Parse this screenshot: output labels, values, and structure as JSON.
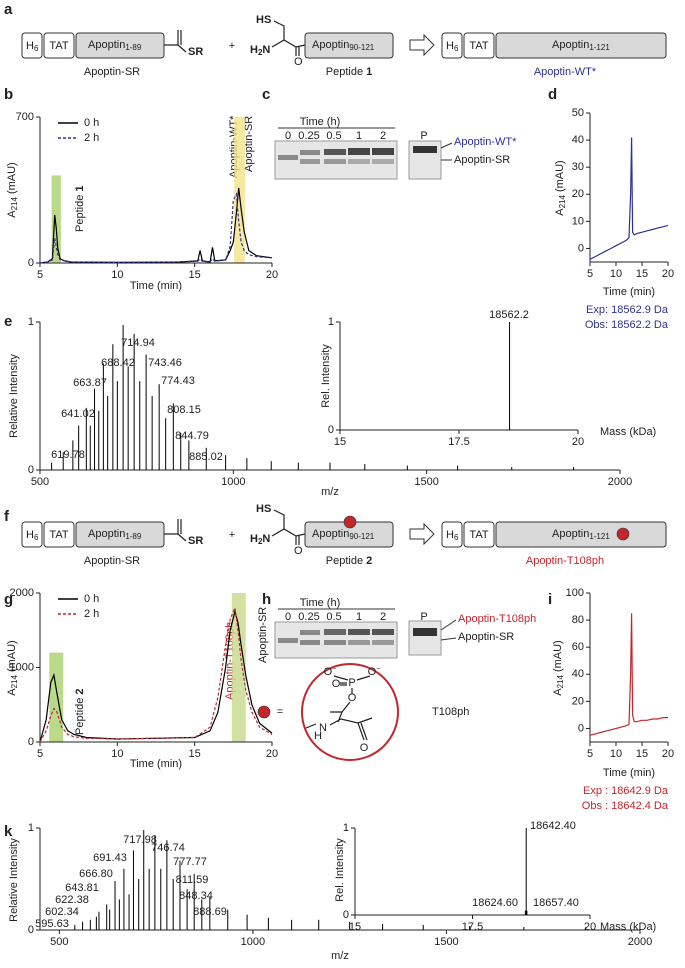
{
  "panel_labels": [
    "a",
    "b",
    "c",
    "d",
    "e",
    "f",
    "g",
    "h",
    "i",
    "k"
  ],
  "schemes": [
    {
      "h": "H",
      "h_sub": "6",
      "tat": "TAT",
      "frag1": "Apoptin",
      "frag1_sub": "1-89",
      "thioester": "SR",
      "plus": "+",
      "hs": "HS",
      "amine": "H",
      "amine_sub": "2",
      "amine_n": "N",
      "carbonyl": "O",
      "frag2": "Apoptin",
      "frag2_sub": "90-121",
      "product": "Apoptin",
      "product_sub": "1-121",
      "label1": "Apoptin-SR",
      "label2": "Peptide",
      "label2_num": "1",
      "label3": "Apoptin-WT*"
    },
    {
      "h": "H",
      "h_sub": "6",
      "tat": "TAT",
      "frag1": "Apoptin",
      "frag1_sub": "1-89",
      "thioester": "SR",
      "plus": "+",
      "hs": "HS",
      "amine": "H",
      "amine_sub": "2",
      "amine_n": "N",
      "carbonyl": "O",
      "frag2": "Apoptin",
      "frag2_sub": "90-121",
      "product": "Apoptin",
      "product_sub": "1-121",
      "label1": "Apoptin-SR",
      "label2": "Peptide",
      "label2_num": "2",
      "label3": "Apoptin-T108ph"
    }
  ],
  "gels": [
    {
      "time_label": "Time (h)",
      "lanes": [
        "0",
        "0.25",
        "0.5",
        "1",
        "2"
      ],
      "ref": "P",
      "bands": [
        "Apoptin-WT*",
        "Apoptin-SR"
      ]
    },
    {
      "time_label": "Time (h)",
      "lanes": [
        "0",
        "0.25",
        "0.5",
        "1",
        "2"
      ],
      "ref": "P",
      "bands": [
        "Apoptin-T108ph",
        "Apoptin-SR"
      ]
    }
  ],
  "structure": {
    "eq": "=",
    "name": "T108ph",
    "p": "P",
    "o": "O",
    "minus": "−",
    "n": "N",
    "h": "H"
  },
  "chart_data": [
    {
      "type": "line",
      "x_label": "Time (min)",
      "y_label": {
        "main": "A",
        "sub": "214",
        "unit": "(mAU)"
      },
      "xlim": [
        5,
        20
      ],
      "ylim": [
        0,
        700
      ],
      "xticks": [
        5,
        10,
        15,
        20
      ],
      "yticks": [
        0,
        700
      ],
      "legend": "upper left",
      "highlights": [
        {
          "x": [
            5.75,
            6.35
          ],
          "y": 420,
          "color": "#a9cf6b"
        },
        {
          "x": [
            17.55,
            18.25
          ],
          "y": 700,
          "color": "#f3e48a"
        }
      ],
      "annotations": [
        {
          "text": "Peptide",
          "num": "1"
        },
        "Apoptin-WT*",
        "Apoptin-SR"
      ],
      "series": [
        {
          "name": "0 h",
          "color": "#000000",
          "dash": false,
          "x": [
            5,
            5.5,
            5.8,
            5.95,
            6.05,
            6.15,
            6.3,
            6.6,
            7,
            10,
            14,
            15.2,
            15.35,
            15.5,
            16,
            16.15,
            16.3,
            17,
            17.3,
            17.5,
            17.7,
            17.85,
            18,
            18.2,
            18.5,
            19,
            20
          ],
          "values": [
            0,
            5,
            20,
            230,
            170,
            70,
            20,
            10,
            5,
            3,
            5,
            10,
            60,
            10,
            5,
            75,
            10,
            15,
            60,
            100,
            240,
            360,
            260,
            150,
            60,
            35,
            25
          ]
        },
        {
          "name": "2 h",
          "color": "#2e3192",
          "dash": true,
          "x": [
            5,
            5.5,
            5.8,
            5.95,
            6.05,
            6.15,
            6.3,
            6.6,
            7,
            10,
            14,
            15.2,
            15.35,
            15.5,
            16,
            16.15,
            16.3,
            17,
            17.3,
            17.5,
            17.7,
            17.85,
            18,
            18.2,
            18.5,
            19,
            20
          ],
          "values": [
            0,
            5,
            15,
            120,
            80,
            40,
            15,
            10,
            5,
            3,
            5,
            8,
            20,
            8,
            5,
            20,
            8,
            15,
            80,
            300,
            330,
            200,
            100,
            60,
            40,
            30,
            25
          ]
        }
      ]
    },
    {
      "type": "line",
      "x_label": "Time (min)",
      "y_label": {
        "main": "A",
        "sub": "214",
        "unit": "(mAU)"
      },
      "xlim": [
        5,
        20
      ],
      "ylim": [
        -5,
        50
      ],
      "xticks": [
        5,
        10,
        15,
        20
      ],
      "yticks": [
        0,
        10,
        20,
        30,
        40,
        50
      ],
      "annotations": [
        "Exp: 18562.9 Da",
        "Obs: 18562.2 Da"
      ],
      "series": [
        {
          "color": "#2e3192",
          "dash": false,
          "x": [
            5,
            6,
            7,
            8,
            9,
            10,
            11,
            12,
            12.5,
            12.8,
            13,
            13.2,
            13.5,
            14,
            15,
            16,
            17,
            18,
            19,
            20
          ],
          "values": [
            -4,
            -3,
            -2,
            -1,
            0,
            1,
            2,
            3,
            4,
            20,
            41,
            6,
            5,
            5.5,
            6,
            6.5,
            7,
            7.5,
            8,
            8.5
          ]
        }
      ]
    },
    {
      "type": "stem",
      "x_label": "m/z",
      "y_label": "Relative Intensity",
      "xlim": [
        500,
        2000
      ],
      "ylim": [
        0,
        1
      ],
      "xticks": [
        500,
        1000,
        1500,
        2000
      ],
      "yticks": [
        0,
        1
      ],
      "series": [
        {
          "color": "#000000",
          "x": [
            619.78,
            641.02,
            663.87,
            688.42,
            714.94,
            743.46,
            774.43,
            808.15,
            844.79,
            885.02
          ],
          "x_labels": [
            "619.78",
            "641.02",
            "663.87",
            "688.42",
            "714.94",
            "743.46",
            "774.43",
            "808.15",
            "844.79",
            "885.02"
          ],
          "values": [
            0.42,
            0.55,
            0.72,
            0.85,
            0.98,
            0.92,
            0.78,
            0.58,
            0.45,
            0.2
          ]
        },
        {
          "color": "#000000",
          "x": [
            530,
            560,
            585,
            600,
            630,
            652,
            675,
            700,
            728,
            758,
            790,
            825,
            864,
            930,
            980,
            1035,
            1098,
            1168,
            1250,
            1340,
            1450,
            1580,
            1720,
            1880
          ],
          "values": [
            0.05,
            0.12,
            0.2,
            0.3,
            0.3,
            0.4,
            0.5,
            0.6,
            0.7,
            0.6,
            0.5,
            0.35,
            0.25,
            0.15,
            0.1,
            0.08,
            0.06,
            0.05,
            0.05,
            0.04,
            0.03,
            0.03,
            0.02,
            0.02
          ]
        }
      ]
    },
    {
      "type": "stem",
      "x_label": "Mass (kDa)",
      "y_label": "Rel. Intensity",
      "xlim": [
        15,
        20
      ],
      "ylim": [
        0,
        1
      ],
      "xticks": [
        15,
        17.5,
        20
      ],
      "yticks": [
        0,
        1
      ],
      "series": [
        {
          "color": "#000000",
          "x": [
            18.5622
          ],
          "x_labels": [
            "18562.2"
          ],
          "values": [
            1
          ]
        }
      ]
    },
    {
      "type": "line",
      "x_label": "Time (min)",
      "y_label": {
        "main": "A",
        "sub": "214",
        "unit": "(mAU)"
      },
      "xlim": [
        5,
        20
      ],
      "ylim": [
        0,
        2000
      ],
      "xticks": [
        5,
        10,
        15,
        20
      ],
      "yticks": [
        0,
        1000,
        2000
      ],
      "legend": "upper left",
      "highlights": [
        {
          "x": [
            5.6,
            6.5
          ],
          "y": 1200,
          "color": "#a9cf6b"
        },
        {
          "x": [
            17.4,
            18.3
          ],
          "y": 2000,
          "color": "#c6d98a"
        }
      ],
      "annotations": [
        {
          "text": "Peptide",
          "num": "2"
        },
        "Apoptin-T108ph",
        "Apoptin-SR"
      ],
      "series": [
        {
          "name": "0 h",
          "color": "#000000",
          "dash": false,
          "x": [
            5,
            5.4,
            5.7,
            5.9,
            6.1,
            6.4,
            6.8,
            7.2,
            8,
            10,
            15,
            16,
            16.5,
            17,
            17.3,
            17.6,
            17.8,
            18,
            18.3,
            18.7,
            19.2,
            20
          ],
          "values": [
            0,
            300,
            800,
            900,
            650,
            300,
            150,
            100,
            60,
            40,
            60,
            150,
            400,
            1000,
            1500,
            1750,
            1600,
            1300,
            900,
            500,
            250,
            120
          ]
        },
        {
          "name": "2 h",
          "color": "#c1272d",
          "dash": true,
          "x": [
            5,
            5.4,
            5.7,
            5.9,
            6.1,
            6.4,
            6.8,
            7.2,
            8,
            10,
            15,
            16,
            16.5,
            17,
            17.3,
            17.6,
            17.8,
            18,
            18.3,
            18.7,
            19.2,
            20
          ],
          "values": [
            0,
            150,
            350,
            450,
            400,
            200,
            100,
            70,
            50,
            40,
            60,
            200,
            600,
            1300,
            1650,
            1800,
            1500,
            1100,
            700,
            400,
            200,
            100
          ]
        }
      ]
    },
    {
      "type": "line",
      "x_label": "Time (min)",
      "y_label": {
        "main": "A",
        "sub": "214",
        "unit": "(mAU)"
      },
      "xlim": [
        5,
        20
      ],
      "ylim": [
        -10,
        100
      ],
      "xticks": [
        5,
        10,
        15,
        20
      ],
      "yticks": [
        0,
        20,
        40,
        60,
        80,
        100
      ],
      "annotations": [
        "Exp : 18642.9 Da",
        "Obs : 18642.4 Da"
      ],
      "series": [
        {
          "color": "#c1272d",
          "dash": false,
          "x": [
            5,
            6,
            7,
            8,
            9,
            10,
            11,
            12,
            12.5,
            12.8,
            13,
            13.2,
            13.5,
            14,
            15,
            16,
            17,
            18,
            19,
            20
          ],
          "values": [
            -5,
            -4,
            -3,
            -2,
            -1,
            0,
            1,
            2,
            3,
            40,
            85,
            10,
            5,
            5,
            6,
            6,
            7,
            7,
            8,
            8
          ]
        }
      ]
    },
    {
      "type": "stem",
      "x_label": "m/z",
      "y_label": "Relative Intensity",
      "xlim": [
        450,
        2000
      ],
      "ylim": [
        0,
        1
      ],
      "xticks": [
        500,
        1000,
        1500,
        2000
      ],
      "yticks": [
        0,
        1
      ],
      "series": [
        {
          "color": "#000000",
          "x": [
            595.63,
            602.34,
            622.38,
            643.81,
            666.8,
            691.43,
            717.98,
            746.74,
            777.77,
            811.59,
            848.34,
            888.69
          ],
          "x_labels": [
            "595.63",
            "602.34",
            "622.38",
            "643.81",
            "666.80",
            "691.43",
            "717.98",
            "746.74",
            "777.77",
            "811.59",
            "848.34",
            "888.69"
          ],
          "values": [
            0.13,
            0.18,
            0.25,
            0.48,
            0.6,
            0.78,
            0.98,
            0.93,
            0.88,
            0.68,
            0.55,
            0.32
          ]
        },
        {
          "color": "#000000",
          "x": [
            540,
            560,
            580,
            630,
            655,
            680,
            705,
            732,
            762,
            794,
            830,
            868,
            935,
            985,
            1040,
            1100,
            1170,
            1250,
            1335,
            1440,
            1560,
            1700,
            1860
          ],
          "values": [
            0.05,
            0.08,
            0.1,
            0.2,
            0.3,
            0.35,
            0.5,
            0.6,
            0.6,
            0.5,
            0.4,
            0.3,
            0.2,
            0.15,
            0.12,
            0.1,
            0.1,
            0.08,
            0.06,
            0.05,
            0.04,
            0.03,
            0.03
          ]
        }
      ]
    },
    {
      "type": "stem",
      "x_label": "Mass (kDa)",
      "y_label": "Rel. Intensity",
      "xlim": [
        15,
        20
      ],
      "ylim": [
        0,
        1
      ],
      "xticks": [
        15,
        17.5,
        20
      ],
      "yticks": [
        0,
        1
      ],
      "series": [
        {
          "color": "#000000",
          "x": [
            18.6246,
            18.6424,
            18.6574
          ],
          "x_labels": [
            "18624.60",
            "18642.40",
            "18657.40"
          ],
          "values": [
            0.05,
            1,
            0.05
          ]
        }
      ]
    }
  ]
}
